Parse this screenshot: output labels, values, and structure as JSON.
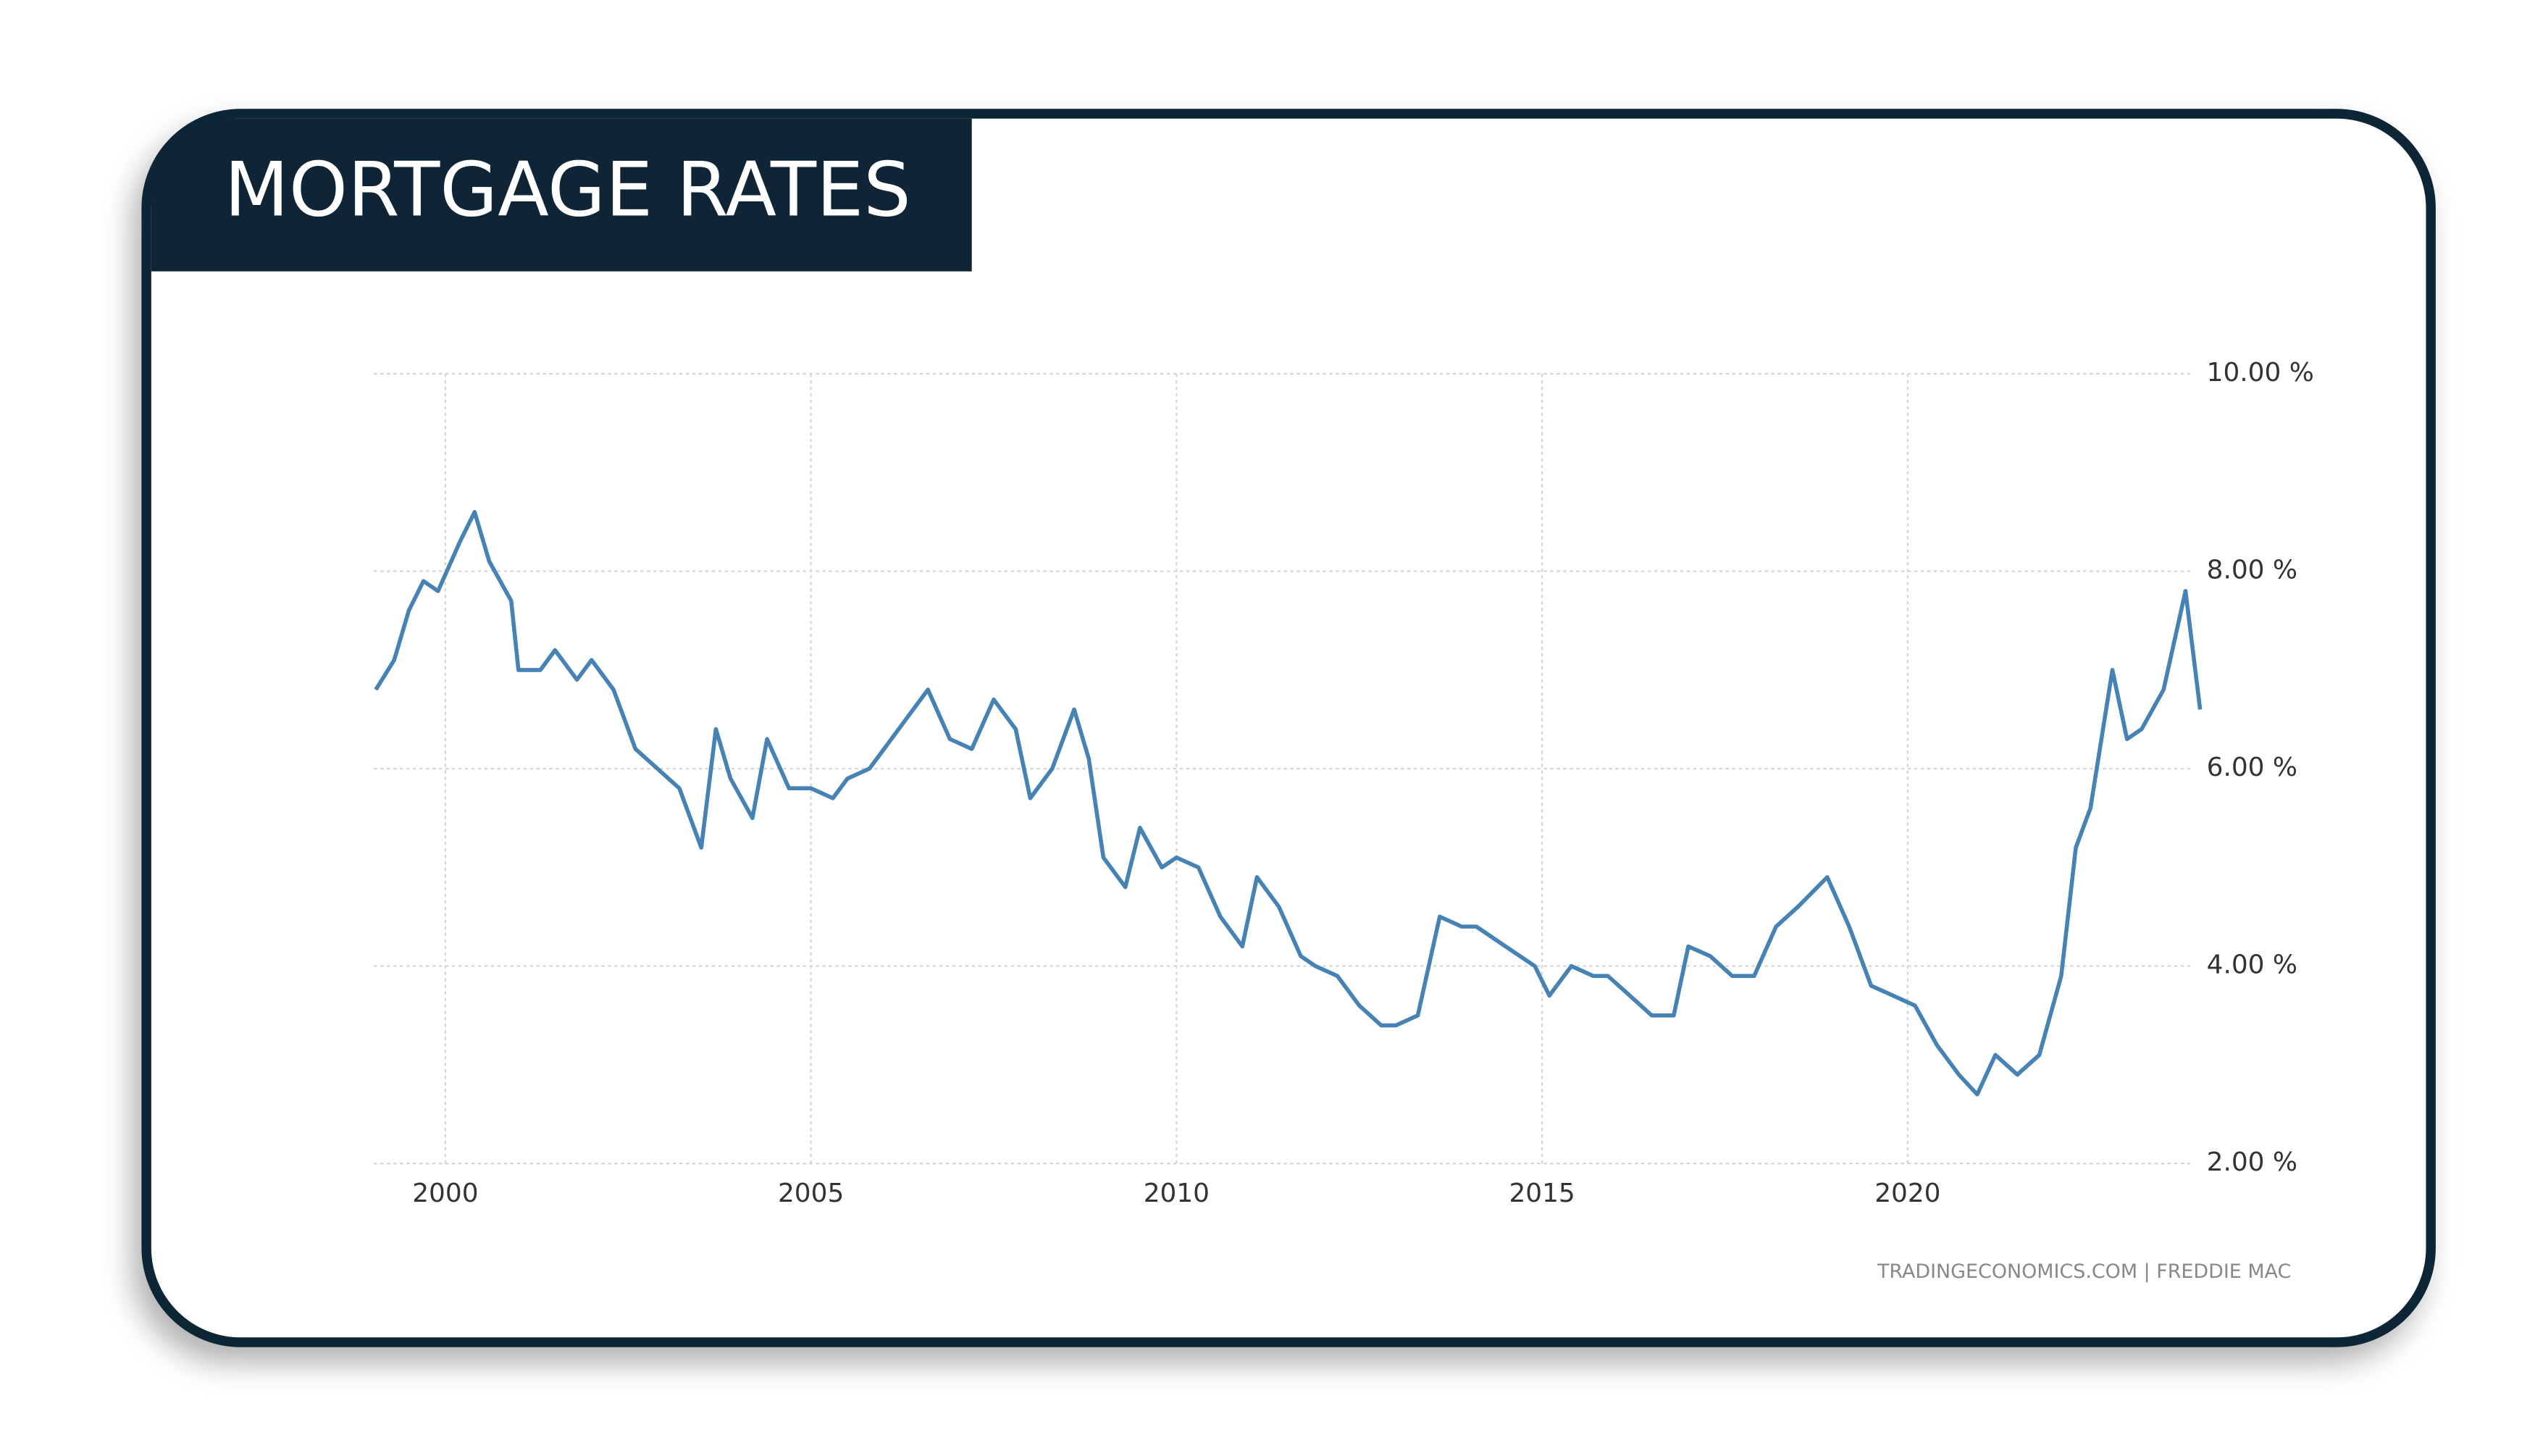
{
  "chart_data": {
    "type": "line",
    "title": "MORTGAGE RATES",
    "source": "TRADINGECONOMICS.COM | FREDDIE MAC",
    "color": "#4682b4",
    "x": [
      1999.05,
      1999.3,
      1999.5,
      1999.7,
      1999.9,
      2000.2,
      2000.4,
      2000.6,
      2000.9,
      2001.0,
      2001.3,
      2001.5,
      2001.8,
      2002.0,
      2002.3,
      2002.6,
      2002.9,
      2003.2,
      2003.5,
      2003.7,
      2003.9,
      2004.2,
      2004.4,
      2004.7,
      2005.0,
      2005.3,
      2005.5,
      2005.8,
      2006.0,
      2006.3,
      2006.6,
      2006.9,
      2007.2,
      2007.5,
      2007.8,
      2008.0,
      2008.3,
      2008.6,
      2008.8,
      2009.0,
      2009.3,
      2009.5,
      2009.8,
      2010.0,
      2010.3,
      2010.6,
      2010.9,
      2011.1,
      2011.4,
      2011.7,
      2011.9,
      2012.2,
      2012.5,
      2012.8,
      2013.0,
      2013.3,
      2013.6,
      2013.9,
      2014.1,
      2014.5,
      2014.9,
      2015.1,
      2015.4,
      2015.7,
      2015.9,
      2016.2,
      2016.5,
      2016.8,
      2017.0,
      2017.3,
      2017.6,
      2017.9,
      2018.2,
      2018.5,
      2018.9,
      2019.2,
      2019.5,
      2019.8,
      2020.1,
      2020.4,
      2020.7,
      2020.95,
      2021.2,
      2021.5,
      2021.8,
      2022.1,
      2022.3,
      2022.5,
      2022.8,
      2023.0,
      2023.2,
      2023.5,
      2023.8,
      2024.0
    ],
    "values": [
      6.8,
      7.1,
      7.6,
      7.9,
      7.8,
      8.3,
      8.6,
      8.1,
      7.7,
      7.0,
      7.0,
      7.2,
      6.9,
      7.1,
      6.8,
      6.2,
      6.0,
      5.8,
      5.2,
      6.4,
      5.9,
      5.5,
      6.3,
      5.8,
      5.8,
      5.7,
      5.9,
      6.0,
      6.2,
      6.5,
      6.8,
      6.3,
      6.2,
      6.7,
      6.4,
      5.7,
      6.0,
      6.6,
      6.1,
      5.1,
      4.8,
      5.4,
      5.0,
      5.1,
      5.0,
      4.5,
      4.2,
      4.9,
      4.6,
      4.1,
      4.0,
      3.9,
      3.6,
      3.4,
      3.4,
      3.5,
      4.5,
      4.4,
      4.4,
      4.2,
      4.0,
      3.7,
      4.0,
      3.9,
      3.9,
      3.7,
      3.5,
      3.5,
      4.2,
      4.1,
      3.9,
      3.9,
      4.4,
      4.6,
      4.9,
      4.4,
      3.8,
      3.7,
      3.6,
      3.2,
      2.9,
      2.7,
      3.1,
      2.9,
      3.1,
      3.9,
      5.2,
      5.6,
      7.0,
      6.3,
      6.4,
      6.8,
      7.8,
      6.6
    ],
    "xlim": [
      1999,
      2024.1
    ],
    "xticks": [
      2000,
      2005,
      2010,
      2015,
      2020
    ],
    "ylim": [
      2,
      10
    ],
    "yticks": [
      {
        "value": 2,
        "label": "2.00 %"
      },
      {
        "value": 4,
        "label": "4.00 %"
      },
      {
        "value": 6,
        "label": "6.00 %"
      },
      {
        "value": 8,
        "label": "8.00 %"
      },
      {
        "value": 10,
        "label": "10.00 %"
      }
    ],
    "grid": true
  }
}
